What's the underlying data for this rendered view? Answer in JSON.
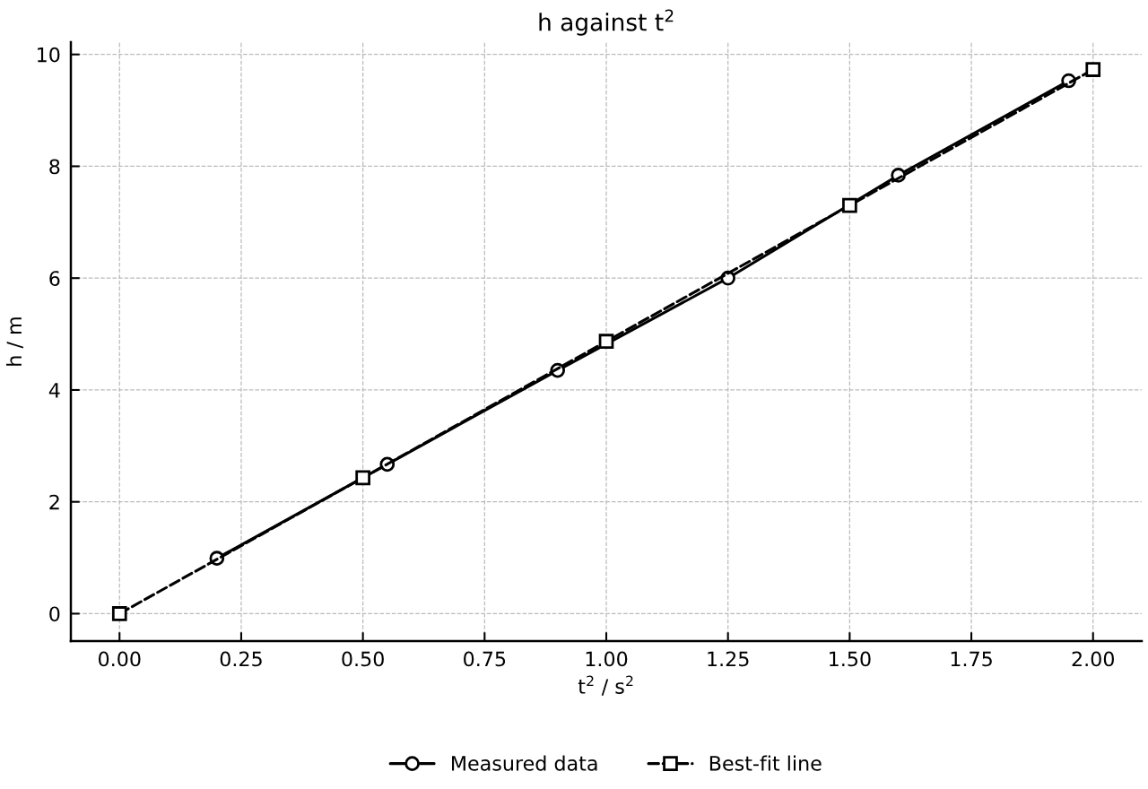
{
  "chart_data": {
    "type": "line",
    "title": "h against t$^{2}$",
    "xlabel": "t$^{2}$ / s$^{2}$",
    "ylabel": "h / m",
    "series": [
      {
        "name": "Measured data",
        "color": "#000000",
        "x": [
          0.2,
          0.55,
          0.9,
          1.25,
          1.6,
          1.95
        ],
        "values": [
          0.99,
          2.67,
          4.35,
          6.0,
          7.84,
          9.53
        ],
        "marker": "circle",
        "line_style": "solid"
      },
      {
        "name": "Best-fit line",
        "color": "#000000",
        "x": [
          0.0,
          0.5,
          1.0,
          1.5,
          2.0
        ],
        "values": [
          0.0,
          2.43,
          4.87,
          7.3,
          9.73
        ],
        "marker": "square",
        "line_style": "dashed"
      }
    ],
    "xlim": [
      -0.1,
      2.1
    ],
    "ylim": [
      -0.49,
      10.22
    ],
    "xticks": [
      {
        "value": 0.0,
        "label": "0.00"
      },
      {
        "value": 0.25,
        "label": "0.25"
      },
      {
        "value": 0.5,
        "label": "0.50"
      },
      {
        "value": 0.75,
        "label": "0.75"
      },
      {
        "value": 1.0,
        "label": "1.00"
      },
      {
        "value": 1.25,
        "label": "1.25"
      },
      {
        "value": 1.5,
        "label": "1.50"
      },
      {
        "value": 1.75,
        "label": "1.75"
      },
      {
        "value": 2.0,
        "label": "2.00"
      }
    ],
    "yticks": [
      0,
      2,
      4,
      6,
      8,
      10
    ],
    "grid": true,
    "legend": "bottom"
  }
}
